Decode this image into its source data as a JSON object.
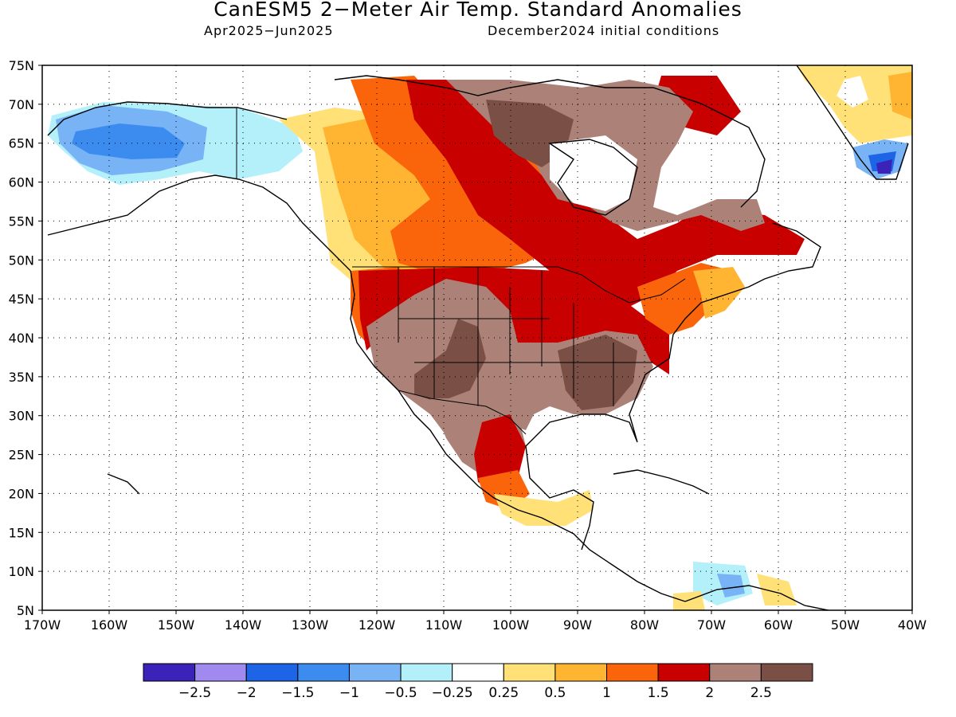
{
  "title": "CanESM5 2−Meter Air Temp. Standard Anomalies",
  "period": "Apr2025−Jun2025",
  "init": "December2024 initial conditions",
  "lat_labels": [
    "75N",
    "70N",
    "65N",
    "60N",
    "55N",
    "50N",
    "45N",
    "40N",
    "35N",
    "30N",
    "25N",
    "20N",
    "15N",
    "10N",
    "5N"
  ],
  "lon_labels": [
    "170W",
    "160W",
    "150W",
    "140W",
    "130W",
    "120W",
    "110W",
    "100W",
    "90W",
    "80W",
    "70W",
    "60W",
    "50W",
    "40W"
  ],
  "legend": {
    "colors": [
      "#3b22b8",
      "#a08af0",
      "#1e64e6",
      "#3c8cf0",
      "#78b4f5",
      "#b4f0fa",
      "#ffffff",
      "#ffe178",
      "#ffb432",
      "#fa640a",
      "#c80000",
      "#ac8278",
      "#7a5046"
    ],
    "labels": [
      "−2.5",
      "−2",
      "−1.5",
      "−1",
      "−0.5",
      "−0.25",
      "0.25",
      "0.5",
      "1",
      "1.5",
      "2",
      "2.5"
    ]
  }
}
